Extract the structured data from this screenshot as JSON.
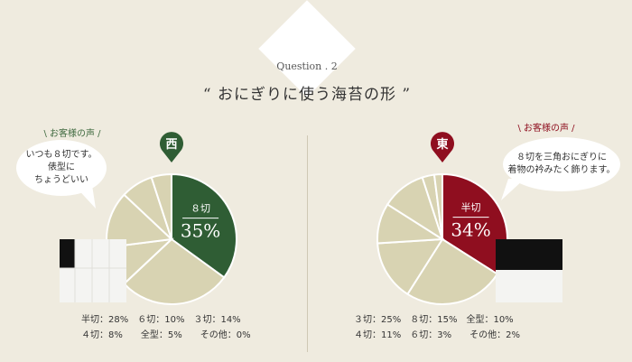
{
  "header": {
    "question": "Question . 2",
    "title": "“ おにぎりに使う海苔の形 ”"
  },
  "west": {
    "region": "西",
    "voice_label": "\\ お客様の声 /",
    "comment_lines": [
      "いつも８切です。",
      "俵型に",
      "ちょうどいい"
    ],
    "highlight_label": "８切",
    "highlight_value": "35%",
    "stats_line1": "半切：28%　６切：10%　３切：14%",
    "stats_line2": "４切：8%　　全型：5%　　その他：0%"
  },
  "east": {
    "region": "東",
    "voice_label": "\\ お客様の声 /",
    "comment_lines": [
      "８切を三角おにぎりに",
      "着物の衿みたく飾ります。"
    ],
    "highlight_label": "半切",
    "highlight_value": "34%",
    "stats_line1": "３切：25%　８切：15%　全型：10%",
    "stats_line2": "４切：11%　６切：3%　　その他：2%"
  },
  "colors": {
    "background": "#efebdf",
    "west_accent": "#2f5d34",
    "east_accent": "#8f0e1f",
    "pie_base": "#d8d3b2",
    "pie_line": "#ffffff"
  },
  "chart_data": [
    {
      "type": "pie",
      "title": "西",
      "categories": [
        "８切",
        "半切",
        "６切",
        "３切",
        "４切",
        "全型",
        "その他"
      ],
      "values": [
        35,
        28,
        10,
        14,
        8,
        5,
        0
      ],
      "highlight": "８切"
    },
    {
      "type": "pie",
      "title": "東",
      "categories": [
        "半切",
        "３切",
        "８切",
        "全型",
        "４切",
        "６切",
        "その他"
      ],
      "values": [
        34,
        25,
        15,
        10,
        11,
        3,
        2
      ],
      "highlight": "半切"
    }
  ]
}
